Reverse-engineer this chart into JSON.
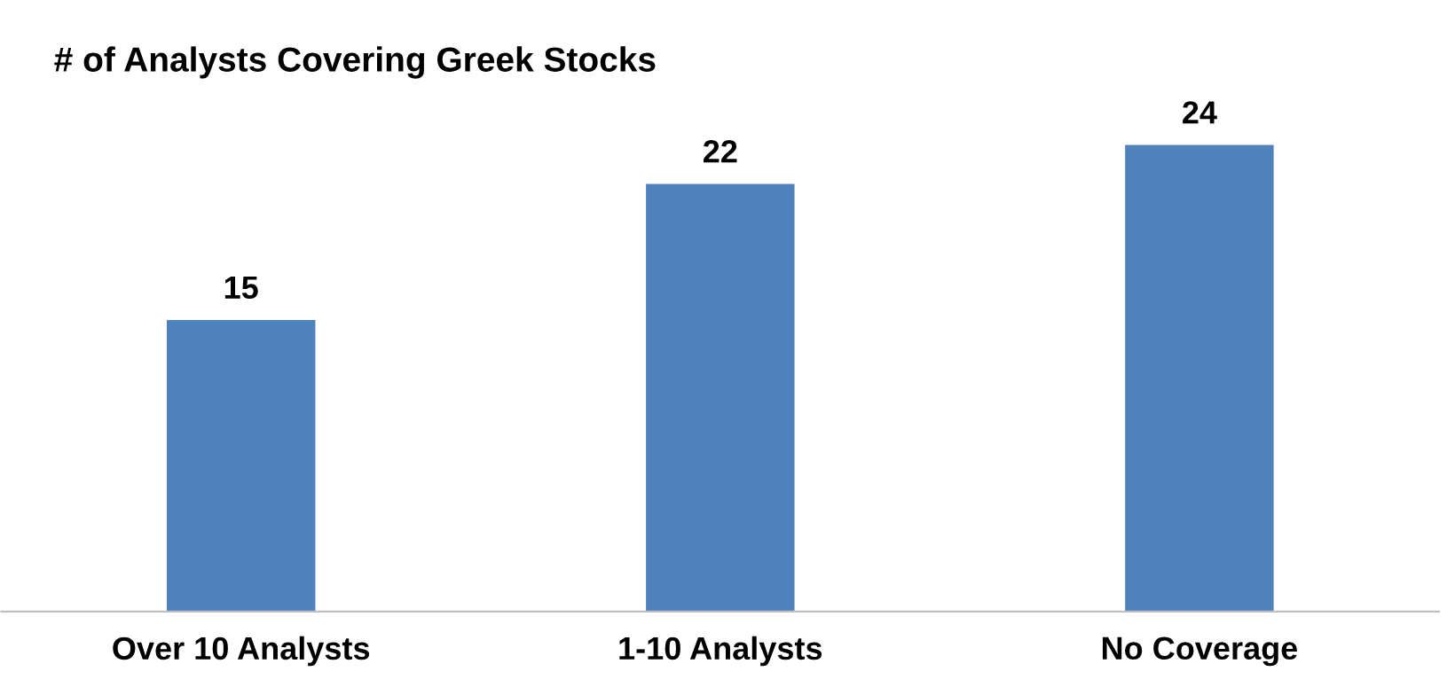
{
  "chart_data": {
    "type": "bar",
    "title": "# of Analysts Covering Greek Stocks",
    "categories": [
      "Over 10 Analysts",
      "1-10 Analysts",
      "No Coverage"
    ],
    "values": [
      15,
      22,
      24
    ],
    "color": "#4f81bd",
    "tick_labels": "x",
    "data_labels": true,
    "grid": false,
    "legend": false
  }
}
